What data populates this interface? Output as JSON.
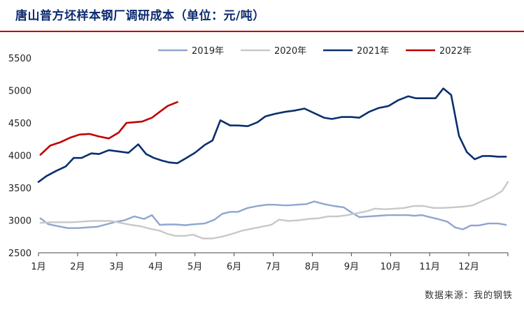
{
  "title": "唐山普方坯样本钢厂调研成本（单位：元/吨）",
  "source": "数据来源：我的钢铁",
  "chart_data": {
    "type": "line",
    "title": "唐山普方坯样本钢厂调研成本（单位：元/吨）",
    "xlabel": "",
    "ylabel": "",
    "ylim": [
      2500,
      5500
    ],
    "yticks": [
      2500,
      3000,
      3500,
      4000,
      4500,
      5000,
      5500
    ],
    "xlim": [
      1,
      13
    ],
    "months": [
      "1月",
      "2月",
      "3月",
      "4月",
      "5月",
      "6月",
      "7月",
      "8月",
      "9月",
      "10月",
      "11月",
      "12月"
    ],
    "grid": false,
    "legend_position": "top",
    "series": [
      {
        "name": "2019年",
        "color": "#8ea6cf",
        "points": [
          [
            1.05,
            3030
          ],
          [
            1.25,
            2940
          ],
          [
            1.5,
            2910
          ],
          [
            1.75,
            2880
          ],
          [
            2.0,
            2880
          ],
          [
            2.25,
            2890
          ],
          [
            2.5,
            2900
          ],
          [
            2.75,
            2940
          ],
          [
            3.0,
            2980
          ],
          [
            3.2,
            3000
          ],
          [
            3.45,
            3060
          ],
          [
            3.7,
            3020
          ],
          [
            3.9,
            3080
          ],
          [
            4.1,
            2930
          ],
          [
            4.3,
            2935
          ],
          [
            4.5,
            2935
          ],
          [
            4.75,
            2925
          ],
          [
            5.0,
            2940
          ],
          [
            5.25,
            2950
          ],
          [
            5.5,
            3010
          ],
          [
            5.7,
            3100
          ],
          [
            5.9,
            3130
          ],
          [
            6.1,
            3130
          ],
          [
            6.35,
            3190
          ],
          [
            6.6,
            3220
          ],
          [
            6.85,
            3240
          ],
          [
            7.05,
            3240
          ],
          [
            7.25,
            3230
          ],
          [
            7.4,
            3230
          ],
          [
            7.6,
            3240
          ],
          [
            7.85,
            3250
          ],
          [
            8.05,
            3290
          ],
          [
            8.3,
            3250
          ],
          [
            8.55,
            3220
          ],
          [
            8.8,
            3200
          ],
          [
            9.0,
            3120
          ],
          [
            9.2,
            3050
          ],
          [
            9.45,
            3060
          ],
          [
            9.7,
            3070
          ],
          [
            9.95,
            3080
          ],
          [
            10.2,
            3080
          ],
          [
            10.45,
            3080
          ],
          [
            10.6,
            3070
          ],
          [
            10.8,
            3080
          ],
          [
            11.0,
            3050
          ],
          [
            11.2,
            3020
          ],
          [
            11.45,
            2980
          ],
          [
            11.65,
            2890
          ],
          [
            11.85,
            2860
          ],
          [
            12.05,
            2920
          ],
          [
            12.25,
            2920
          ],
          [
            12.5,
            2950
          ],
          [
            12.75,
            2950
          ],
          [
            12.95,
            2930
          ]
        ]
      },
      {
        "name": "2020年",
        "color": "#c8c8c8",
        "points": [
          [
            1.05,
            2960
          ],
          [
            1.3,
            2970
          ],
          [
            1.6,
            2970
          ],
          [
            1.85,
            2970
          ],
          [
            2.1,
            2980
          ],
          [
            2.35,
            2990
          ],
          [
            2.6,
            2990
          ],
          [
            2.85,
            2990
          ],
          [
            3.1,
            2960
          ],
          [
            3.35,
            2930
          ],
          [
            3.6,
            2910
          ],
          [
            3.85,
            2870
          ],
          [
            4.1,
            2840
          ],
          [
            4.3,
            2790
          ],
          [
            4.5,
            2760
          ],
          [
            4.75,
            2760
          ],
          [
            4.95,
            2780
          ],
          [
            5.2,
            2720
          ],
          [
            5.45,
            2720
          ],
          [
            5.7,
            2750
          ],
          [
            5.95,
            2790
          ],
          [
            6.2,
            2840
          ],
          [
            6.45,
            2870
          ],
          [
            6.7,
            2900
          ],
          [
            6.95,
            2930
          ],
          [
            7.15,
            3010
          ],
          [
            7.4,
            2990
          ],
          [
            7.65,
            3000
          ],
          [
            7.9,
            3020
          ],
          [
            8.15,
            3030
          ],
          [
            8.4,
            3060
          ],
          [
            8.65,
            3060
          ],
          [
            8.9,
            3080
          ],
          [
            9.15,
            3110
          ],
          [
            9.4,
            3140
          ],
          [
            9.6,
            3180
          ],
          [
            9.85,
            3170
          ],
          [
            10.1,
            3180
          ],
          [
            10.35,
            3190
          ],
          [
            10.6,
            3220
          ],
          [
            10.85,
            3220
          ],
          [
            11.1,
            3190
          ],
          [
            11.35,
            3190
          ],
          [
            11.6,
            3200
          ],
          [
            11.85,
            3210
          ],
          [
            12.1,
            3230
          ],
          [
            12.35,
            3300
          ],
          [
            12.6,
            3360
          ],
          [
            12.85,
            3450
          ],
          [
            13.0,
            3590
          ]
        ]
      },
      {
        "name": "2021年",
        "color": "#0a2f6e",
        "points": [
          [
            1.0,
            3590
          ],
          [
            1.2,
            3680
          ],
          [
            1.45,
            3760
          ],
          [
            1.7,
            3830
          ],
          [
            1.9,
            3960
          ],
          [
            2.1,
            3960
          ],
          [
            2.35,
            4030
          ],
          [
            2.55,
            4020
          ],
          [
            2.8,
            4080
          ],
          [
            3.05,
            4060
          ],
          [
            3.3,
            4040
          ],
          [
            3.55,
            4170
          ],
          [
            3.75,
            4020
          ],
          [
            3.95,
            3960
          ],
          [
            4.15,
            3920
          ],
          [
            4.35,
            3890
          ],
          [
            4.55,
            3880
          ],
          [
            4.75,
            3950
          ],
          [
            5.0,
            4040
          ],
          [
            5.25,
            4160
          ],
          [
            5.45,
            4230
          ],
          [
            5.65,
            4540
          ],
          [
            5.9,
            4460
          ],
          [
            6.1,
            4460
          ],
          [
            6.35,
            4450
          ],
          [
            6.6,
            4510
          ],
          [
            6.8,
            4600
          ],
          [
            7.05,
            4640
          ],
          [
            7.3,
            4670
          ],
          [
            7.55,
            4690
          ],
          [
            7.8,
            4720
          ],
          [
            8.05,
            4650
          ],
          [
            8.3,
            4580
          ],
          [
            8.5,
            4560
          ],
          [
            8.75,
            4590
          ],
          [
            9.0,
            4590
          ],
          [
            9.2,
            4580
          ],
          [
            9.45,
            4670
          ],
          [
            9.7,
            4730
          ],
          [
            9.95,
            4760
          ],
          [
            10.2,
            4850
          ],
          [
            10.45,
            4910
          ],
          [
            10.65,
            4880
          ],
          [
            10.9,
            4880
          ],
          [
            11.15,
            4880
          ],
          [
            11.35,
            5030
          ],
          [
            11.55,
            4930
          ],
          [
            11.75,
            4300
          ],
          [
            11.95,
            4050
          ],
          [
            12.15,
            3940
          ],
          [
            12.35,
            3990
          ],
          [
            12.55,
            3990
          ],
          [
            12.75,
            3980
          ],
          [
            12.95,
            3980
          ]
        ]
      },
      {
        "name": "2022年",
        "color": "#c00000",
        "points": [
          [
            1.05,
            4010
          ],
          [
            1.3,
            4150
          ],
          [
            1.55,
            4200
          ],
          [
            1.8,
            4270
          ],
          [
            2.05,
            4320
          ],
          [
            2.3,
            4330
          ],
          [
            2.55,
            4290
          ],
          [
            2.8,
            4260
          ],
          [
            3.05,
            4350
          ],
          [
            3.25,
            4500
          ],
          [
            3.45,
            4510
          ],
          [
            3.65,
            4520
          ],
          [
            3.9,
            4580
          ],
          [
            4.1,
            4670
          ],
          [
            4.3,
            4760
          ],
          [
            4.55,
            4820
          ]
        ]
      }
    ]
  }
}
